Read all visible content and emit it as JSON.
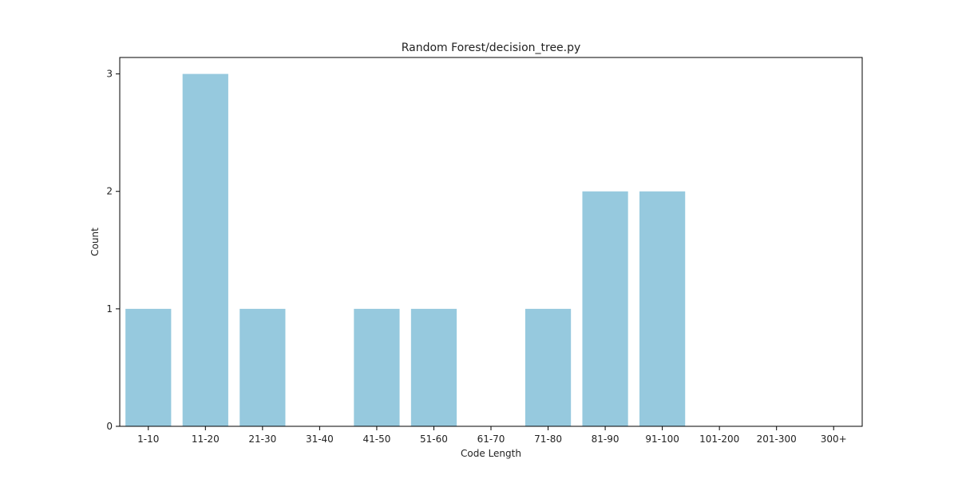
{
  "chart_data": {
    "type": "bar",
    "title": "Random Forest/decision_tree.py",
    "xlabel": "Code Length",
    "ylabel": "Count",
    "categories": [
      "1-10",
      "11-20",
      "21-30",
      "31-40",
      "41-50",
      "51-60",
      "61-70",
      "71-80",
      "81-90",
      "91-100",
      "101-200",
      "201-300",
      "300+"
    ],
    "values": [
      1,
      3,
      1,
      0,
      1,
      1,
      0,
      1,
      2,
      2,
      0,
      0,
      0
    ],
    "ylim": [
      0,
      3.14
    ],
    "yticks": [
      0,
      1,
      2,
      3
    ],
    "grid": false,
    "legend": "none",
    "bar_color": "#96c9de"
  }
}
